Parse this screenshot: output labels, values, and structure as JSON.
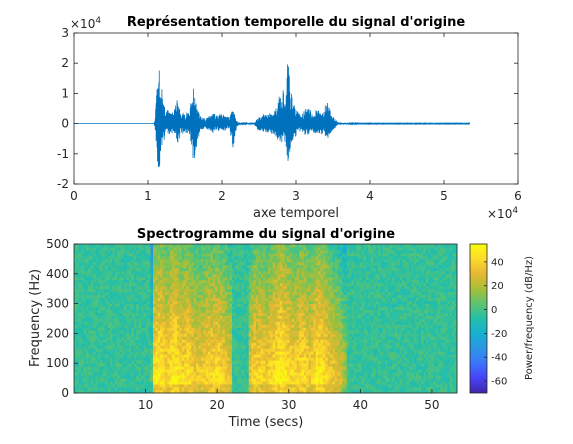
{
  "chart_data": [
    {
      "type": "line",
      "title": "Représentation temporelle du signal d'origine",
      "xlabel": "axe temporel",
      "ylabel": "",
      "xlim": [
        0,
        60000
      ],
      "ylim": [
        -20000,
        30000
      ],
      "x_tick_labels": [
        "0",
        "1",
        "2",
        "3",
        "4",
        "5",
        "6"
      ],
      "y_tick_labels": [
        "-2",
        "-1",
        "0",
        "1",
        "2",
        "3"
      ],
      "x_exponent": "×10",
      "x_exponent_power": "4",
      "y_exponent": "×10",
      "y_exponent_power": "4",
      "series_color": "#0072bd",
      "signal_end": 53500,
      "envelope": {
        "x": [
          0,
          10800,
          11000,
          11300,
          11600,
          12000,
          12500,
          13000,
          13500,
          14000,
          14500,
          15000,
          15600,
          16200,
          17000,
          17800,
          18500,
          19200,
          20000,
          21000,
          21500,
          22000,
          22500,
          23000,
          23500,
          24300,
          25000,
          26000,
          26500,
          27200,
          27700,
          28200,
          28600,
          28900,
          29200,
          29600,
          30200,
          30800,
          31500,
          32200,
          33000,
          33600,
          34200,
          34800,
          35200,
          35600,
          36200,
          37000,
          37800,
          38200,
          53500
        ],
        "upper": [
          0,
          0,
          3000,
          22000,
          18000,
          9000,
          5000,
          3500,
          4000,
          9000,
          4000,
          3500,
          4500,
          13000,
          3000,
          1500,
          4500,
          3000,
          4000,
          2000,
          5000,
          1000,
          300,
          100,
          200,
          200,
          2500,
          3500,
          3500,
          5000,
          9000,
          13000,
          6000,
          25000,
          12000,
          8000,
          4000,
          3000,
          6000,
          3500,
          5000,
          4000,
          9000,
          3000,
          2000,
          500,
          300,
          200,
          200,
          100,
          100
        ],
        "lower": [
          0,
          0,
          -3000,
          -17000,
          -14000,
          -7000,
          -4000,
          -3500,
          -3000,
          -7000,
          -3500,
          -3000,
          -3500,
          -15000,
          -2500,
          -1500,
          -3500,
          -2500,
          -3000,
          -1500,
          -9000,
          -1000,
          -300,
          -100,
          -200,
          -200,
          -2500,
          -3000,
          -3000,
          -4000,
          -7000,
          -9000,
          -5000,
          -15000,
          -9000,
          -6000,
          -3000,
          -2500,
          -4500,
          -3000,
          -4000,
          -3500,
          -6000,
          -2500,
          -2000,
          -500,
          -300,
          -200,
          -200,
          -100,
          -100
        ]
      }
    },
    {
      "type": "heatmap",
      "title": "Spectrogramme du signal d'origine",
      "xlabel": "Time (secs)",
      "ylabel": "Frequency (Hz)",
      "xlim": [
        0,
        53.5
      ],
      "ylim": [
        0,
        500
      ],
      "x_tick_labels": [
        "10",
        "20",
        "30",
        "40",
        "50"
      ],
      "y_tick_labels": [
        "0",
        "100",
        "200",
        "300",
        "400",
        "500"
      ],
      "colorbar_label": "Power/frequency (dB/Hz)",
      "colorbar_range": [
        -70,
        55
      ],
      "colorbar_tick_labels": [
        "-60",
        "-40",
        "-20",
        "0",
        "20",
        "40"
      ],
      "colormap": [
        "#3e26a8",
        "#4743f8",
        "#3b75fb",
        "#2c96e2",
        "#15b1d1",
        "#25bfa8",
        "#5dc46e",
        "#a8bf37",
        "#e6b833",
        "#fddb2b",
        "#f9fb0e"
      ],
      "speech_segments": [
        [
          10.8,
          22.0
        ],
        [
          24.5,
          38.2
        ]
      ],
      "energy_profile": {
        "t": [
          0,
          10.8,
          11.2,
          12,
          13,
          14,
          15,
          16,
          17,
          18,
          19,
          20,
          21,
          22,
          23,
          24,
          24.5,
          25,
          26,
          27,
          28,
          29,
          30,
          31,
          32,
          33,
          34,
          35,
          36,
          37,
          38.2,
          40,
          53.5
        ],
        "level_db": [
          -2,
          -2,
          45,
          50,
          40,
          52,
          42,
          46,
          35,
          38,
          42,
          44,
          38,
          30,
          4,
          2,
          30,
          40,
          42,
          38,
          46,
          52,
          44,
          40,
          46,
          38,
          50,
          44,
          36,
          30,
          15,
          -2,
          -2
        ]
      }
    }
  ]
}
